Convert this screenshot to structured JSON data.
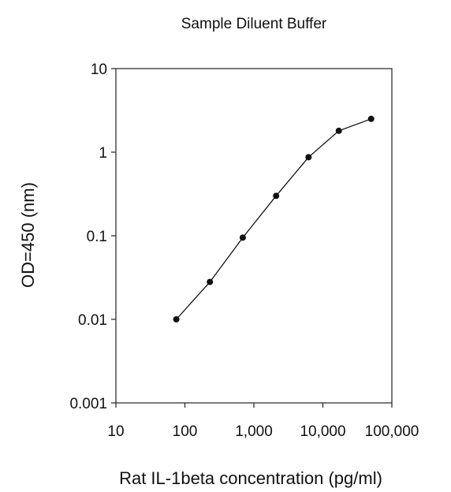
{
  "chart_data": {
    "type": "line",
    "title": "Sample Diluent Buffer",
    "xlabel": "Rat IL-1beta concentration (pg/ml)",
    "ylabel": "OD=450 (nm)",
    "x_scale": "log",
    "y_scale": "log",
    "xlim": [
      10,
      100000
    ],
    "ylim": [
      0.001,
      10
    ],
    "x_ticks": [
      {
        "value": 10,
        "label": "10"
      },
      {
        "value": 100,
        "label": "100"
      },
      {
        "value": 1000,
        "label": "1,000"
      },
      {
        "value": 10000,
        "label": "10,000"
      },
      {
        "value": 100000,
        "label": "100,000"
      }
    ],
    "y_ticks": [
      {
        "value": 0.001,
        "label": "0.001"
      },
      {
        "value": 0.01,
        "label": "0.01"
      },
      {
        "value": 0.1,
        "label": "0.1"
      },
      {
        "value": 1,
        "label": "1"
      },
      {
        "value": 10,
        "label": "10"
      }
    ],
    "grid": false,
    "legend": "none",
    "series": [
      {
        "x": [
          75,
          230,
          690,
          2100,
          6200,
          17000,
          50000
        ],
        "y": [
          0.01,
          0.028,
          0.095,
          0.3,
          0.87,
          1.8,
          2.5
        ],
        "color": "#111111",
        "marker": "circle"
      }
    ]
  }
}
